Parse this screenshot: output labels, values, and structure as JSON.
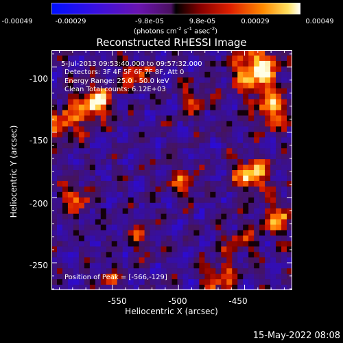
{
  "chart_data": {
    "type": "heatmap",
    "title": "Reconstructed RHESSI Image",
    "xlabel": "Heliocentric X (arcsec)",
    "ylabel": "Heliocentric Y (arcsec)",
    "x_ticks": [
      "-550",
      "-500",
      "-450"
    ],
    "y_ticks": [
      "-100",
      "-150",
      "-200",
      "-250"
    ],
    "xlim": [
      -596,
      -414
    ],
    "ylim": [
      -271,
      -87
    ],
    "colorbar": {
      "ticks": [
        "-0.00049",
        "-0.00029",
        "-9.8e-05",
        "9.8e-05",
        "0.00029",
        "0.00049"
      ],
      "range": [
        -0.00049,
        0.00049
      ],
      "label": "(photons cm",
      "label_sup1": "-2",
      "label_mid": " s",
      "label_sup2": "-1",
      "label_end": " asec",
      "label_sup3": "-2",
      "label_close": ")"
    },
    "annotations": {
      "time_range": "5-Jul-2013 09:53:40.000 to 09:57:32.000",
      "detectors": "Detectors: 3F 4F 5F 6F 7F 8F, Att 0",
      "energy": "Energy Range: 25.0 - 50.0 keV",
      "method": "Clean    Total counts: 6.12E+03",
      "peak": "Position of Peak = [-566,-129]"
    },
    "peak": {
      "x": -566,
      "y": -129
    }
  },
  "footer": {
    "timestamp": "15-May-2022 08:08"
  }
}
